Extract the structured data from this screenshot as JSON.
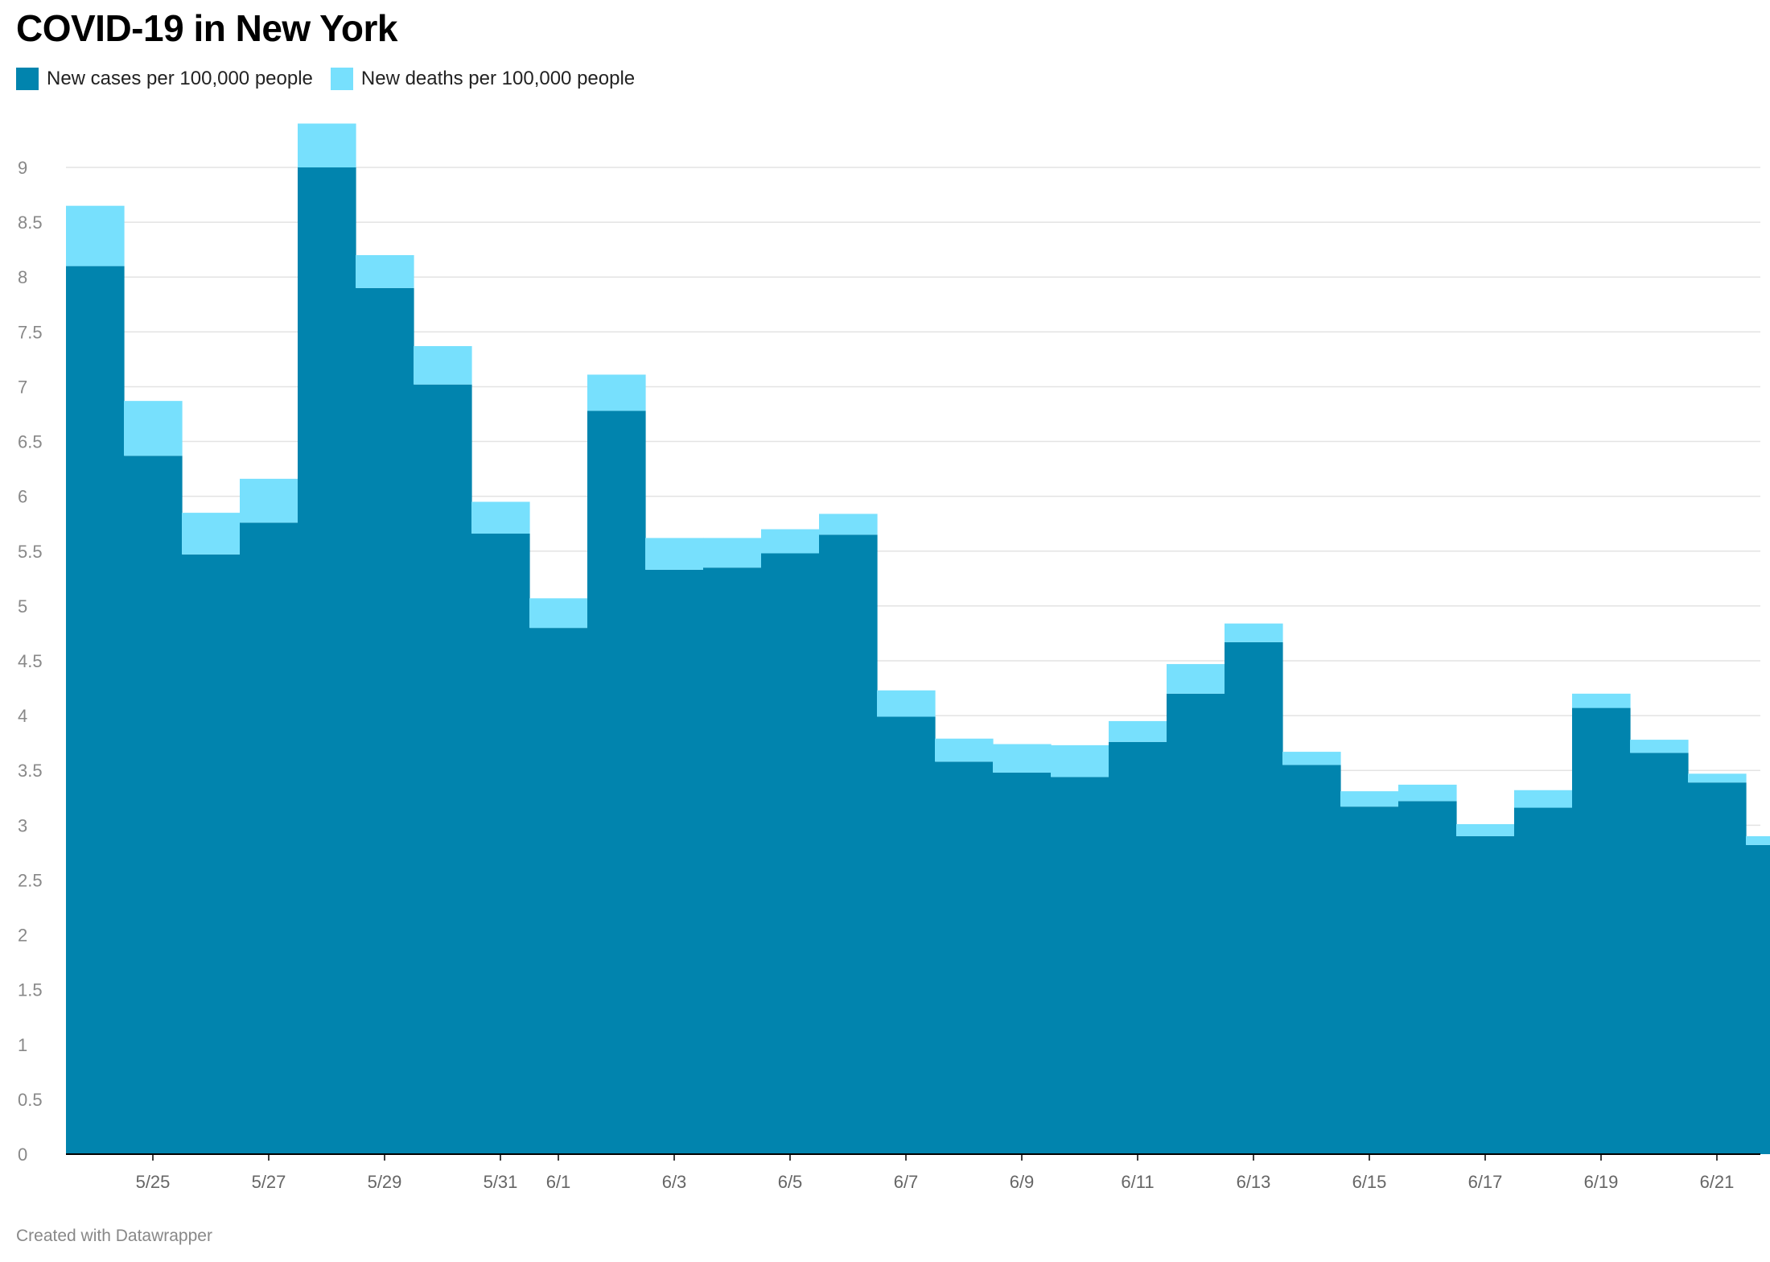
{
  "title": "COVID-19 in New York",
  "footer": "Created with Datawrapper",
  "legend": [
    {
      "label": "New cases per 100,000 people",
      "color": "#0184ae"
    },
    {
      "label": "New deaths per 100,000 people",
      "color": "#77e0fd"
    }
  ],
  "chart_data": {
    "type": "area",
    "stacked": true,
    "step": true,
    "title": "COVID-19 in New York",
    "xlabel": "",
    "ylabel": "",
    "ylim": [
      0,
      9.5
    ],
    "yticks": [
      0,
      0.5,
      1,
      1.5,
      2,
      2.5,
      3,
      3.5,
      4,
      4.5,
      5,
      5.5,
      6,
      6.5,
      7,
      7.5,
      8,
      8.5,
      9
    ],
    "ytick_labels": [
      "0",
      "0.5",
      "1",
      "1.5",
      "2",
      "2.5",
      "3",
      "3.5",
      "4",
      "4.5",
      "5",
      "5.5",
      "6",
      "6.5",
      "7",
      "7.5",
      "8",
      "8.5",
      "9"
    ],
    "grid": true,
    "legend_position": "top-left",
    "x": [
      "5/24",
      "5/25",
      "5/26",
      "5/27",
      "5/28",
      "5/29",
      "5/30",
      "5/31",
      "6/1",
      "6/2",
      "6/3",
      "6/4",
      "6/5",
      "6/6",
      "6/7",
      "6/8",
      "6/9",
      "6/10",
      "6/11",
      "6/12",
      "6/13",
      "6/14",
      "6/15",
      "6/16",
      "6/17",
      "6/18",
      "6/19",
      "6/20",
      "6/21",
      "6/22"
    ],
    "xtick_labels": [
      "5/25",
      "5/27",
      "5/29",
      "5/31",
      "6/1",
      "6/3",
      "6/5",
      "6/7",
      "6/9",
      "6/11",
      "6/13",
      "6/15",
      "6/17",
      "6/19",
      "6/21"
    ],
    "series": [
      {
        "name": "New cases per 100,000 people",
        "color": "#0184ae",
        "values": [
          8.1,
          6.37,
          5.47,
          5.76,
          9.0,
          7.9,
          7.02,
          5.66,
          4.8,
          6.78,
          5.33,
          5.35,
          5.48,
          5.65,
          3.99,
          3.58,
          3.48,
          3.44,
          3.76,
          4.2,
          4.67,
          3.55,
          3.17,
          3.22,
          2.9,
          3.16,
          4.07,
          3.66,
          3.39,
          2.82
        ]
      },
      {
        "name": "New deaths per 100,000 people",
        "color": "#77e0fd",
        "values": [
          0.55,
          0.5,
          0.38,
          0.4,
          0.4,
          0.3,
          0.35,
          0.29,
          0.27,
          0.33,
          0.29,
          0.27,
          0.22,
          0.19,
          0.24,
          0.21,
          0.26,
          0.29,
          0.19,
          0.27,
          0.17,
          0.12,
          0.14,
          0.15,
          0.11,
          0.16,
          0.13,
          0.12,
          0.08,
          0.08
        ]
      }
    ]
  }
}
